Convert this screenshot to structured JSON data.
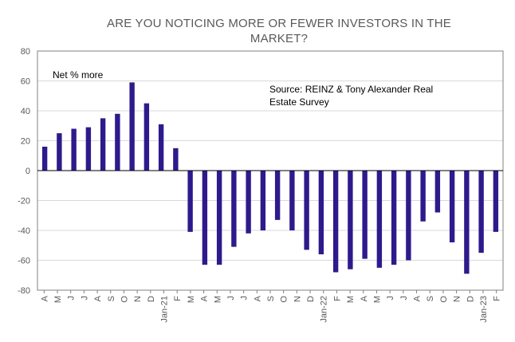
{
  "chart_data": {
    "type": "bar",
    "title_line1": "ARE YOU NOTICING MORE OR FEWER INVESTORS IN THE",
    "title_line2": "MARKET?",
    "series_label": "Net % more",
    "source_line1": "Source: REINZ & Tony Alexander Real",
    "source_line2": "Estate Survey",
    "ylim": [
      -80,
      80
    ],
    "yticks": [
      80,
      60,
      40,
      20,
      0,
      -20,
      -40,
      -60,
      -80
    ],
    "categories": [
      "A",
      "M",
      "J",
      "J",
      "A",
      "S",
      "O",
      "N",
      "Jan-21",
      "F",
      "M",
      "A",
      "M",
      "J",
      "J",
      "A",
      "S",
      "O",
      "N",
      "Jan-22",
      "F",
      "M",
      "A",
      "M",
      "J",
      "J",
      "A",
      "S",
      "O",
      "N",
      "Jan-23",
      "F"
    ],
    "period_labels": [
      "A",
      "M",
      "J",
      "J",
      "A",
      "S",
      "O",
      "N",
      "D",
      "Jan-21",
      "F",
      "M",
      "A",
      "M",
      "J",
      "J",
      "A",
      "S",
      "O",
      "N",
      "D",
      "Jan-22",
      "F",
      "M",
      "A",
      "M",
      "J",
      "J",
      "A",
      "S",
      "O",
      "N",
      "D",
      "Jan-23",
      "F"
    ],
    "values": [
      16,
      25,
      28,
      29,
      35,
      38,
      59,
      45,
      31,
      15,
      -41,
      -63,
      -63,
      -51,
      -42,
      -40,
      -33,
      -40,
      -53,
      -56,
      -68,
      -66,
      -59,
      -65,
      -63,
      -60,
      -34,
      -28,
      -48,
      -69,
      -55,
      -41
    ],
    "bar_color": "#2e1a8c",
    "axis_color": "#808080",
    "grid_color": "#d9d9d9"
  }
}
